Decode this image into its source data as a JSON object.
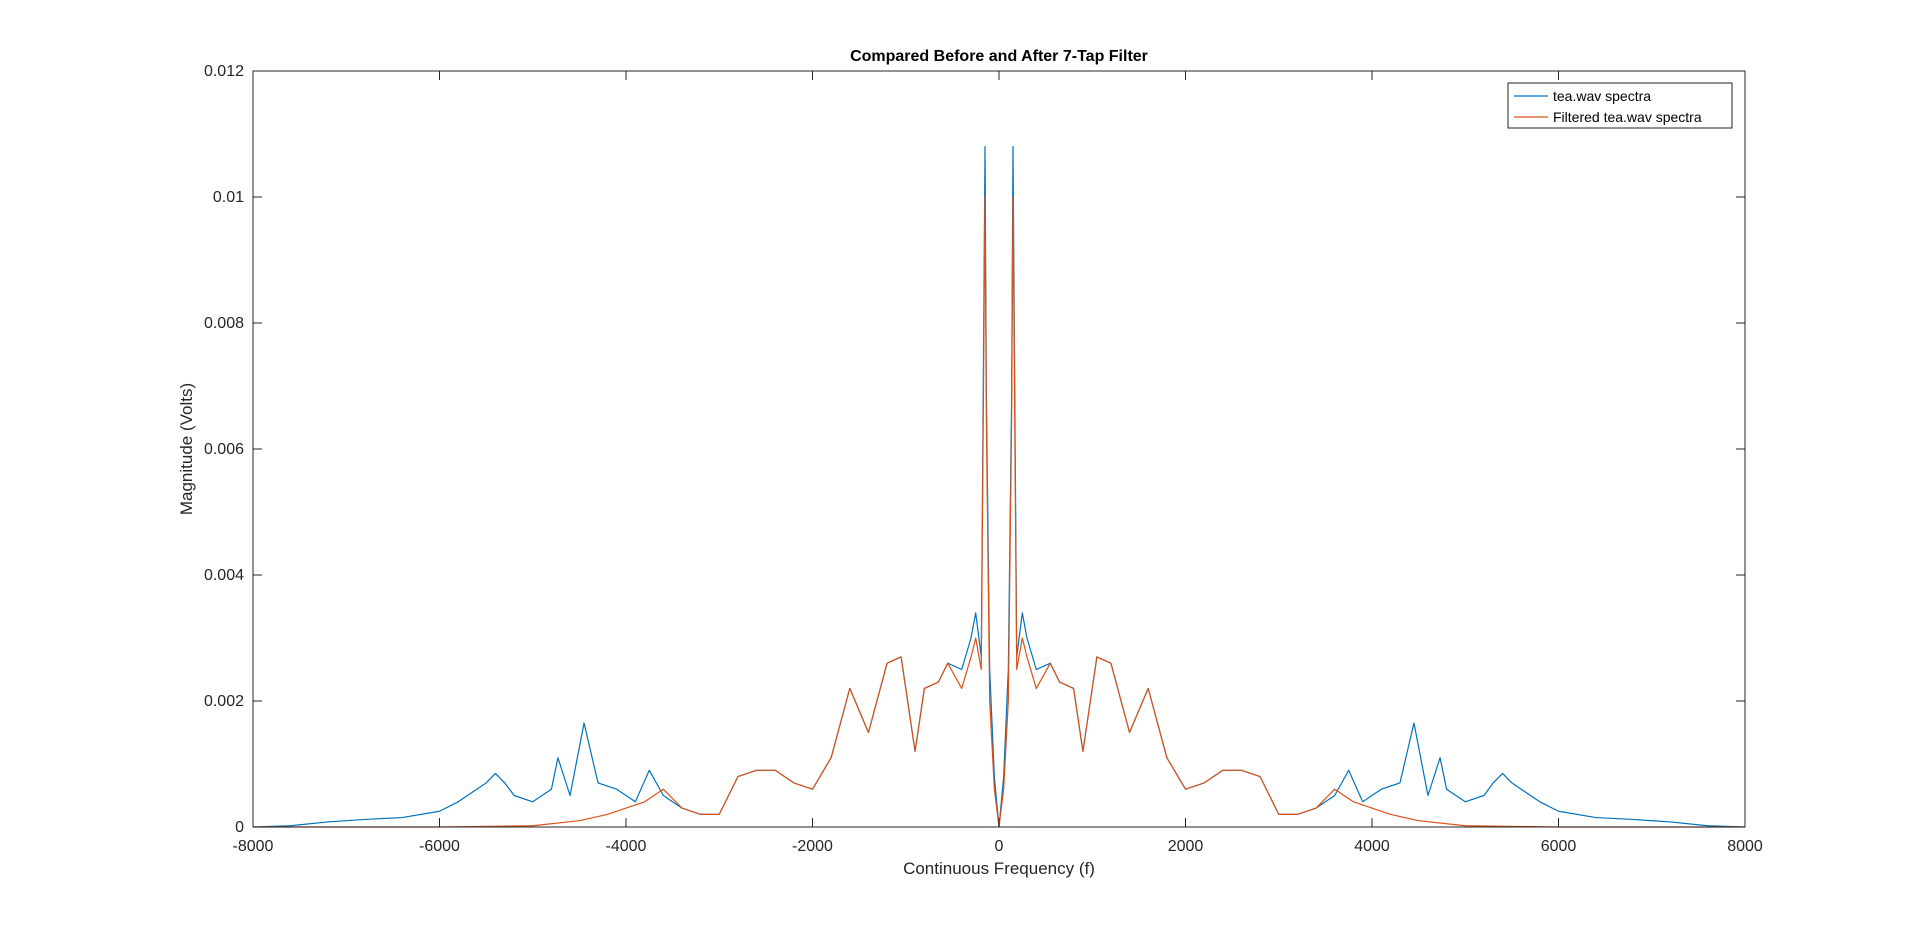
{
  "chart_data": {
    "type": "line",
    "title": "Compared Before and After 7-Tap Filter",
    "xlabel": "Continuous Frequency (f)",
    "ylabel": "Magnitude (Volts)",
    "xlim": [
      -8000,
      8000
    ],
    "ylim": [
      0,
      0.012
    ],
    "xticks": [
      -8000,
      -6000,
      -4000,
      -2000,
      0,
      2000,
      4000,
      6000,
      8000
    ],
    "xtick_labels": [
      "-8000",
      "-6000",
      "-4000",
      "-2000",
      "0",
      "2000",
      "4000",
      "6000",
      "8000"
    ],
    "yticks": [
      0,
      0.002,
      0.004,
      0.006,
      0.008,
      0.01,
      0.012
    ],
    "ytick_labels": [
      "0",
      "0.002",
      "0.004",
      "0.006",
      "0.008",
      "0.01",
      "0.012"
    ],
    "grid": false,
    "legend_position": "top-right",
    "series": [
      {
        "name": "tea.wav spectra",
        "color": "#0072BD",
        "x": [
          -8000,
          -7600,
          -7200,
          -6800,
          -6400,
          -6000,
          -5800,
          -5600,
          -5500,
          -5400,
          -5300,
          -5200,
          -5000,
          -4800,
          -4730,
          -4600,
          -4450,
          -4300,
          -4100,
          -3900,
          -3750,
          -3600,
          -3400,
          -3200,
          -3000,
          -2800,
          -2600,
          -2400,
          -2200,
          -2000,
          -1800,
          -1600,
          -1400,
          -1200,
          -1050,
          -900,
          -800,
          -650,
          -550,
          -400,
          -300,
          -250,
          -190,
          -150,
          -135,
          -100,
          -50,
          0,
          50,
          100,
          135,
          150,
          190,
          250,
          300,
          400,
          550,
          650,
          800,
          900,
          1050,
          1200,
          1400,
          1600,
          1800,
          2000,
          2200,
          2400,
          2600,
          2800,
          3000,
          3200,
          3400,
          3600,
          3750,
          3900,
          4100,
          4300,
          4450,
          4600,
          4730,
          4800,
          5000,
          5200,
          5300,
          5400,
          5500,
          5600,
          5800,
          6000,
          6400,
          6800,
          7200,
          7600,
          8000
        ],
        "y": [
          0.0,
          2e-05,
          8e-05,
          0.00012,
          0.00015,
          0.00025,
          0.0004,
          0.0006,
          0.0007,
          0.00085,
          0.0007,
          0.0005,
          0.0004,
          0.0006,
          0.0011,
          0.0005,
          0.00165,
          0.0007,
          0.0006,
          0.0004,
          0.0009,
          0.0005,
          0.0003,
          0.0002,
          0.0002,
          0.0008,
          0.0009,
          0.0009,
          0.0007,
          0.0006,
          0.0011,
          0.0022,
          0.0015,
          0.0026,
          0.0027,
          0.0012,
          0.0022,
          0.0023,
          0.0026,
          0.0025,
          0.003,
          0.0034,
          0.0027,
          0.0108,
          0.0068,
          0.0025,
          0.0008,
          0.0,
          0.0008,
          0.0025,
          0.0068,
          0.0108,
          0.0027,
          0.0034,
          0.003,
          0.0025,
          0.0026,
          0.0023,
          0.0022,
          0.0012,
          0.0027,
          0.0026,
          0.0015,
          0.0022,
          0.0011,
          0.0006,
          0.0007,
          0.0009,
          0.0009,
          0.0008,
          0.0002,
          0.0002,
          0.0003,
          0.0005,
          0.0009,
          0.0004,
          0.0006,
          0.0007,
          0.00165,
          0.0005,
          0.0011,
          0.0006,
          0.0004,
          0.0005,
          0.0007,
          0.00085,
          0.0007,
          0.0006,
          0.0004,
          0.00025,
          0.00015,
          0.00012,
          8e-05,
          2e-05,
          0.0
        ]
      },
      {
        "name": "Filtered tea.wav spectra",
        "color": "#D95319",
        "x": [
          -8000,
          -6000,
          -5000,
          -4500,
          -4200,
          -4000,
          -3800,
          -3600,
          -3400,
          -3200,
          -3000,
          -2800,
          -2600,
          -2400,
          -2200,
          -2000,
          -1800,
          -1600,
          -1400,
          -1200,
          -1050,
          -900,
          -800,
          -650,
          -550,
          -400,
          -300,
          -250,
          -190,
          -150,
          -135,
          -100,
          -50,
          0,
          50,
          100,
          135,
          150,
          190,
          250,
          300,
          400,
          550,
          650,
          800,
          900,
          1050,
          1200,
          1400,
          1600,
          1800,
          2000,
          2200,
          2400,
          2600,
          2800,
          3000,
          3200,
          3400,
          3600,
          3800,
          4000,
          4200,
          4500,
          5000,
          6000,
          8000
        ],
        "y": [
          0.0,
          0.0,
          2e-05,
          0.0001,
          0.0002,
          0.0003,
          0.0004,
          0.0006,
          0.0003,
          0.0002,
          0.0002,
          0.0008,
          0.0009,
          0.0009,
          0.0007,
          0.0006,
          0.0011,
          0.0022,
          0.0015,
          0.0026,
          0.0027,
          0.0012,
          0.0022,
          0.0023,
          0.0026,
          0.0022,
          0.0027,
          0.003,
          0.0025,
          0.01,
          0.0064,
          0.002,
          0.0006,
          0.0,
          0.0006,
          0.002,
          0.0064,
          0.01,
          0.0025,
          0.003,
          0.0027,
          0.0022,
          0.0026,
          0.0023,
          0.0022,
          0.0012,
          0.0027,
          0.0026,
          0.0015,
          0.0022,
          0.0011,
          0.0006,
          0.0007,
          0.0009,
          0.0009,
          0.0008,
          0.0002,
          0.0002,
          0.0003,
          0.0006,
          0.0004,
          0.0003,
          0.0002,
          0.0001,
          2e-05,
          0.0,
          0.0
        ]
      }
    ]
  }
}
